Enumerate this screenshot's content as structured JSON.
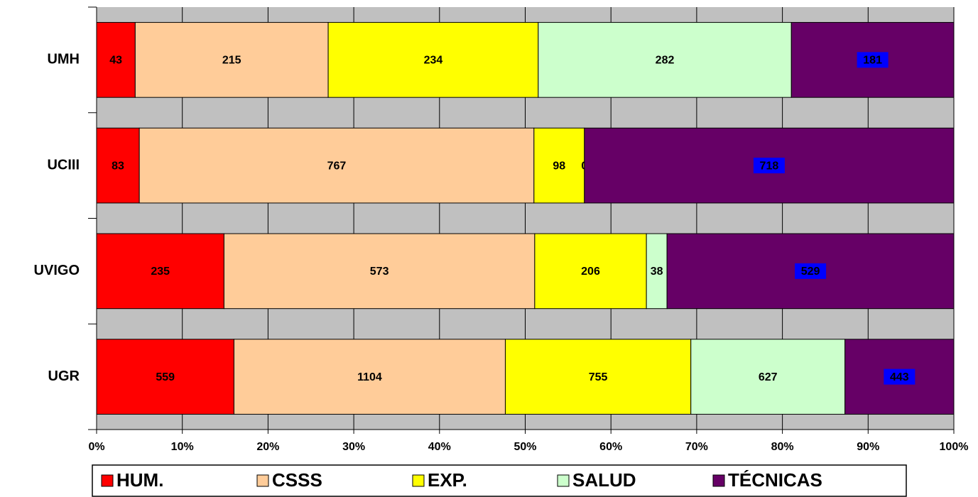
{
  "chart_data": {
    "type": "stacked_bar_percent",
    "orientation": "horizontal",
    "categories": [
      "UMH",
      "UCIII",
      "UVIGO",
      "UGR"
    ],
    "series": [
      {
        "name": "HUM.",
        "color": "#ff0000",
        "values": [
          43,
          83,
          235,
          559
        ]
      },
      {
        "name": "CSSS",
        "color": "#ffcc99",
        "values": [
          215,
          767,
          573,
          1104
        ]
      },
      {
        "name": "EXP.",
        "color": "#ffff00",
        "values": [
          234,
          98,
          206,
          755
        ]
      },
      {
        "name": "SALUD",
        "color": "#ccffcc",
        "values": [
          282,
          0,
          38,
          627
        ]
      },
      {
        "name": "TÉCNICAS",
        "color": "#660066",
        "label_background": "#0000ff",
        "values": [
          181,
          718,
          529,
          443
        ]
      }
    ],
    "xlim": [
      0,
      100
    ],
    "xticks": [
      {
        "value": 0,
        "label": "0%"
      },
      {
        "value": 10,
        "label": "10%"
      },
      {
        "value": 20,
        "label": "20%"
      },
      {
        "value": 30,
        "label": "30%"
      },
      {
        "value": 40,
        "label": "40%"
      },
      {
        "value": 50,
        "label": "50%"
      },
      {
        "value": 60,
        "label": "60%"
      },
      {
        "value": 70,
        "label": "70%"
      },
      {
        "value": 80,
        "label": "80%"
      },
      {
        "value": 90,
        "label": "90%"
      },
      {
        "value": 100,
        "label": "100%"
      }
    ],
    "grid": true,
    "plot_background": "#c0c0c0",
    "legend": "bottom"
  }
}
